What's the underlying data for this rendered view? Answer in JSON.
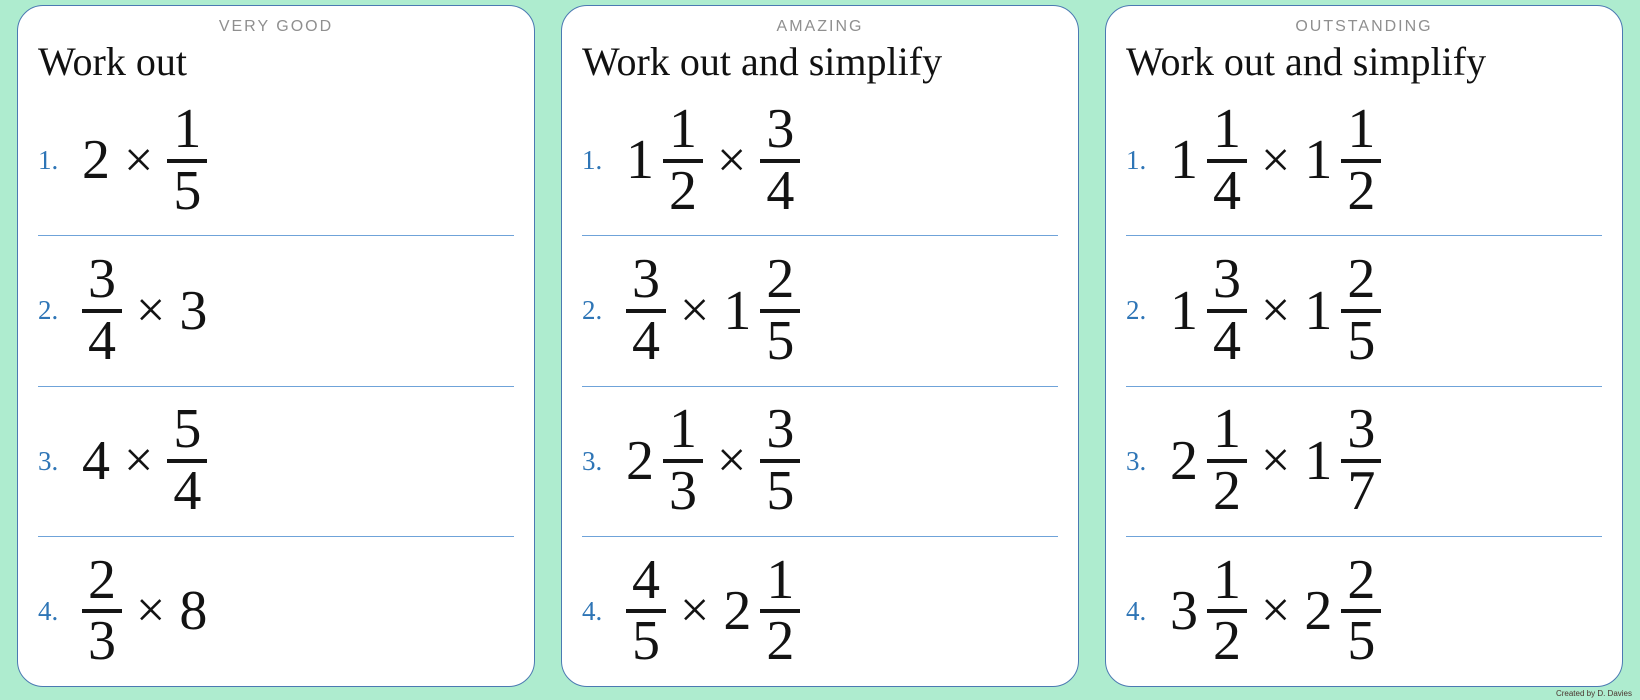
{
  "page": {
    "credit": "Created by D. Davies",
    "times_symbol": "×"
  },
  "colors": {
    "background": "#aeeccf",
    "card_border": "#4b79b2",
    "divider": "#6fa3d9",
    "problem_number": "#2e75b6",
    "title_gray": "#8f8f8f",
    "math_ink": "#131313"
  },
  "cards": [
    {
      "title": "VERY GOOD",
      "prompt": "Work out",
      "problems": [
        {
          "number": "1.",
          "factors": [
            {
              "whole": "2"
            },
            {
              "num": "1",
              "den": "5"
            }
          ]
        },
        {
          "number": "2.",
          "factors": [
            {
              "num": "3",
              "den": "4"
            },
            {
              "whole": "3"
            }
          ]
        },
        {
          "number": "3.",
          "factors": [
            {
              "whole": "4"
            },
            {
              "num": "5",
              "den": "4"
            }
          ]
        },
        {
          "number": "4.",
          "factors": [
            {
              "num": "2",
              "den": "3"
            },
            {
              "whole": "8"
            }
          ]
        }
      ]
    },
    {
      "title": "AMAZING",
      "prompt": "Work out and simplify",
      "problems": [
        {
          "number": "1.",
          "factors": [
            {
              "whole": "1",
              "num": "1",
              "den": "2"
            },
            {
              "num": "3",
              "den": "4"
            }
          ]
        },
        {
          "number": "2.",
          "factors": [
            {
              "num": "3",
              "den": "4"
            },
            {
              "whole": "1",
              "num": "2",
              "den": "5"
            }
          ]
        },
        {
          "number": "3.",
          "factors": [
            {
              "whole": "2",
              "num": "1",
              "den": "3"
            },
            {
              "num": "3",
              "den": "5"
            }
          ]
        },
        {
          "number": "4.",
          "factors": [
            {
              "num": "4",
              "den": "5"
            },
            {
              "whole": "2",
              "num": "1",
              "den": "2"
            }
          ]
        }
      ]
    },
    {
      "title": "OUTSTANDING",
      "prompt": "Work out and simplify",
      "problems": [
        {
          "number": "1.",
          "factors": [
            {
              "whole": "1",
              "num": "1",
              "den": "4"
            },
            {
              "whole": "1",
              "num": "1",
              "den": "2"
            }
          ]
        },
        {
          "number": "2.",
          "factors": [
            {
              "whole": "1",
              "num": "3",
              "den": "4"
            },
            {
              "whole": "1",
              "num": "2",
              "den": "5"
            }
          ]
        },
        {
          "number": "3.",
          "factors": [
            {
              "whole": "2",
              "num": "1",
              "den": "2"
            },
            {
              "whole": "1",
              "num": "3",
              "den": "7"
            }
          ]
        },
        {
          "number": "4.",
          "factors": [
            {
              "whole": "3",
              "num": "1",
              "den": "2"
            },
            {
              "whole": "2",
              "num": "2",
              "den": "5"
            }
          ]
        }
      ]
    }
  ]
}
